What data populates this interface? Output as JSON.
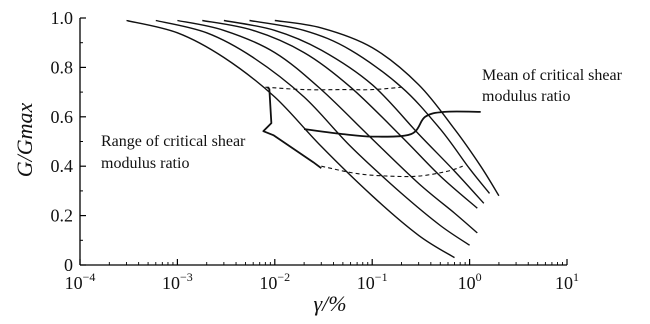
{
  "chart_data": {
    "type": "line",
    "title": "",
    "xlabel": "γ/%",
    "ylabel": "G/Gmax",
    "x_scale": "log",
    "xlim": [
      0.0001,
      10
    ],
    "ylim": [
      0,
      1.0
    ],
    "grid": false,
    "x_ticks": [
      {
        "value": 0.0001,
        "base": "10",
        "exp": "−4"
      },
      {
        "value": 0.001,
        "base": "10",
        "exp": "−3"
      },
      {
        "value": 0.01,
        "base": "10",
        "exp": "−2"
      },
      {
        "value": 0.1,
        "base": "10",
        "exp": "−1"
      },
      {
        "value": 1,
        "base": "10",
        "exp": "0"
      },
      {
        "value": 10,
        "base": "10",
        "exp": "1"
      }
    ],
    "y_ticks": [
      "0",
      "0.2",
      "0.4",
      "0.6",
      "0.8",
      "1.0"
    ],
    "y_tick_values": [
      0,
      0.2,
      0.4,
      0.6,
      0.8,
      1.0
    ],
    "series": [
      {
        "points": [
          [
            0.0003,
            0.99
          ],
          [
            0.001,
            0.94
          ],
          [
            0.003,
            0.84
          ],
          [
            0.01,
            0.68
          ],
          [
            0.03,
            0.48
          ],
          [
            0.1,
            0.28
          ],
          [
            0.3,
            0.12
          ],
          [
            0.7,
            0.03
          ]
        ]
      },
      {
        "points": [
          [
            0.0006,
            0.99
          ],
          [
            0.002,
            0.94
          ],
          [
            0.006,
            0.84
          ],
          [
            0.02,
            0.68
          ],
          [
            0.06,
            0.48
          ],
          [
            0.2,
            0.29
          ],
          [
            0.5,
            0.16
          ],
          [
            1.0,
            0.08
          ]
        ]
      },
      {
        "points": [
          [
            0.001,
            0.99
          ],
          [
            0.003,
            0.95
          ],
          [
            0.01,
            0.86
          ],
          [
            0.03,
            0.71
          ],
          [
            0.1,
            0.51
          ],
          [
            0.3,
            0.33
          ],
          [
            0.7,
            0.21
          ],
          [
            1.2,
            0.13
          ]
        ]
      },
      {
        "points": [
          [
            0.0018,
            0.99
          ],
          [
            0.006,
            0.95
          ],
          [
            0.02,
            0.86
          ],
          [
            0.06,
            0.72
          ],
          [
            0.2,
            0.52
          ],
          [
            0.5,
            0.36
          ],
          [
            1.2,
            0.23
          ]
        ]
      },
      {
        "points": [
          [
            0.003,
            0.99
          ],
          [
            0.01,
            0.95
          ],
          [
            0.03,
            0.87
          ],
          [
            0.1,
            0.73
          ],
          [
            0.3,
            0.53
          ],
          [
            0.7,
            0.38
          ],
          [
            1.4,
            0.25
          ]
        ]
      },
      {
        "points": [
          [
            0.0055,
            0.99
          ],
          [
            0.02,
            0.95
          ],
          [
            0.06,
            0.87
          ],
          [
            0.2,
            0.72
          ],
          [
            0.5,
            0.55
          ],
          [
            1.0,
            0.39
          ],
          [
            1.6,
            0.29
          ]
        ]
      },
      {
        "points": [
          [
            0.01,
            0.99
          ],
          [
            0.03,
            0.96
          ],
          [
            0.1,
            0.88
          ],
          [
            0.3,
            0.73
          ],
          [
            0.7,
            0.55
          ],
          [
            1.3,
            0.4
          ],
          [
            2.0,
            0.28
          ]
        ]
      }
    ],
    "upper_bound_dashed": [
      [
        0.008,
        0.72
      ],
      [
        0.02,
        0.71
      ],
      [
        0.05,
        0.71
      ],
      [
        0.1,
        0.71
      ],
      [
        0.2,
        0.72
      ]
    ],
    "lower_bound_dashed": [
      [
        0.03,
        0.4
      ],
      [
        0.07,
        0.37
      ],
      [
        0.15,
        0.36
      ],
      [
        0.3,
        0.36
      ],
      [
        0.6,
        0.38
      ],
      [
        0.85,
        0.4
      ]
    ],
    "mean_line": [
      [
        0.02,
        0.55
      ],
      [
        0.05,
        0.53
      ],
      [
        0.1,
        0.52
      ],
      [
        0.25,
        0.53
      ],
      [
        0.35,
        0.6
      ],
      [
        0.55,
        0.62
      ],
      [
        1.3,
        0.62
      ]
    ],
    "annotations": {
      "mean_label": [
        "Mean of critical shear",
        "modulus ratio"
      ],
      "range_label": [
        "Range of critical shear",
        "modulus ratio"
      ]
    }
  }
}
